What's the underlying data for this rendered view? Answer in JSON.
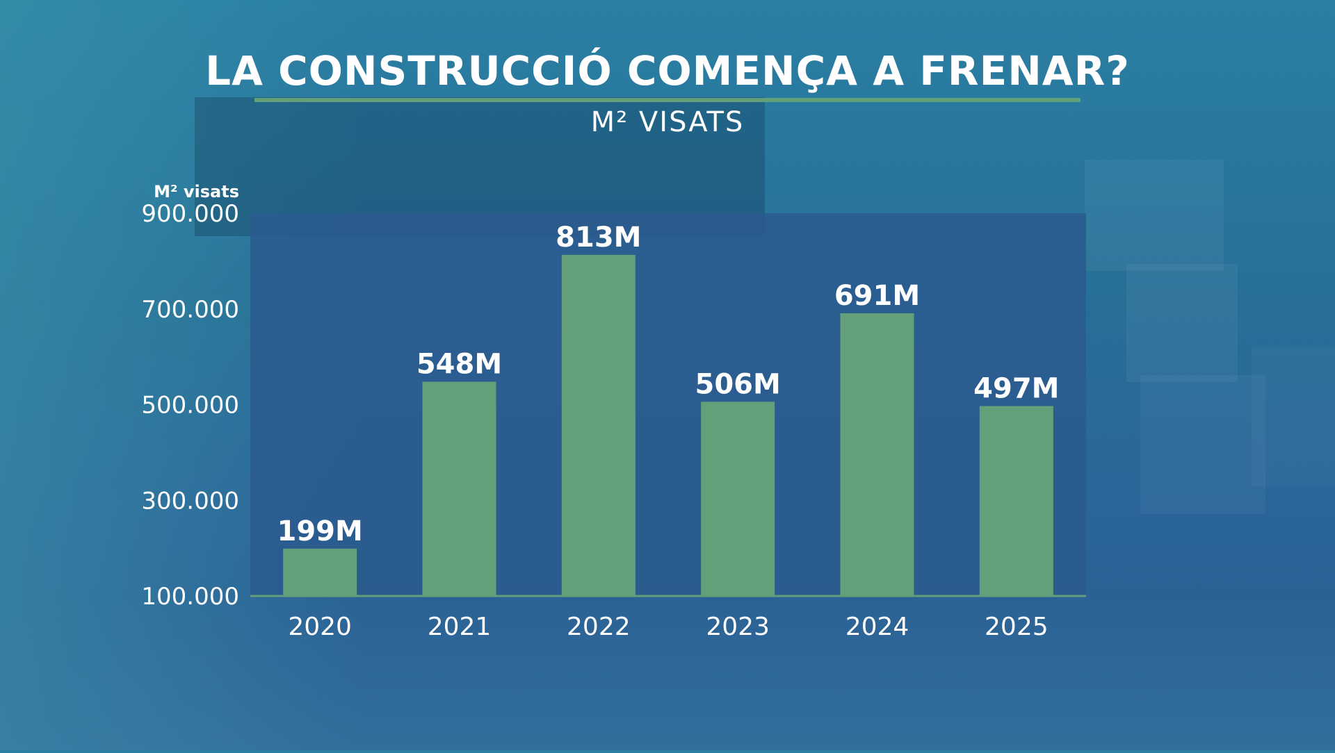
{
  "header": {
    "title": "LA CONSTRUCCIÓ COMENÇA A FRENAR?",
    "subtitle": "M² VISATS"
  },
  "colors": {
    "bar": "#63a07a",
    "plot_bg": "#2b5a8e",
    "text": "#ffffff",
    "accent_rule": "#63a07a"
  },
  "chart_data": {
    "type": "bar",
    "title": "LA CONSTRUCCIÓ COMENÇA A FRENAR?",
    "subtitle": "M² VISATS",
    "ylabel": "M² visats",
    "xlabel": "",
    "categories": [
      "2020",
      "2021",
      "2022",
      "2023",
      "2024",
      "2025"
    ],
    "values": [
      199000,
      548000,
      813000,
      506000,
      691000,
      497000
    ],
    "data_labels": [
      "199M",
      "548M",
      "813M",
      "506M",
      "691M",
      "497M"
    ],
    "yticks": [
      "100.000",
      "300.000",
      "500.000",
      "700.000",
      "900.000"
    ],
    "ytick_values": [
      100000,
      300000,
      500000,
      700000,
      900000
    ],
    "ylim": [
      100000,
      900000
    ],
    "grid": false,
    "legend": "none"
  }
}
